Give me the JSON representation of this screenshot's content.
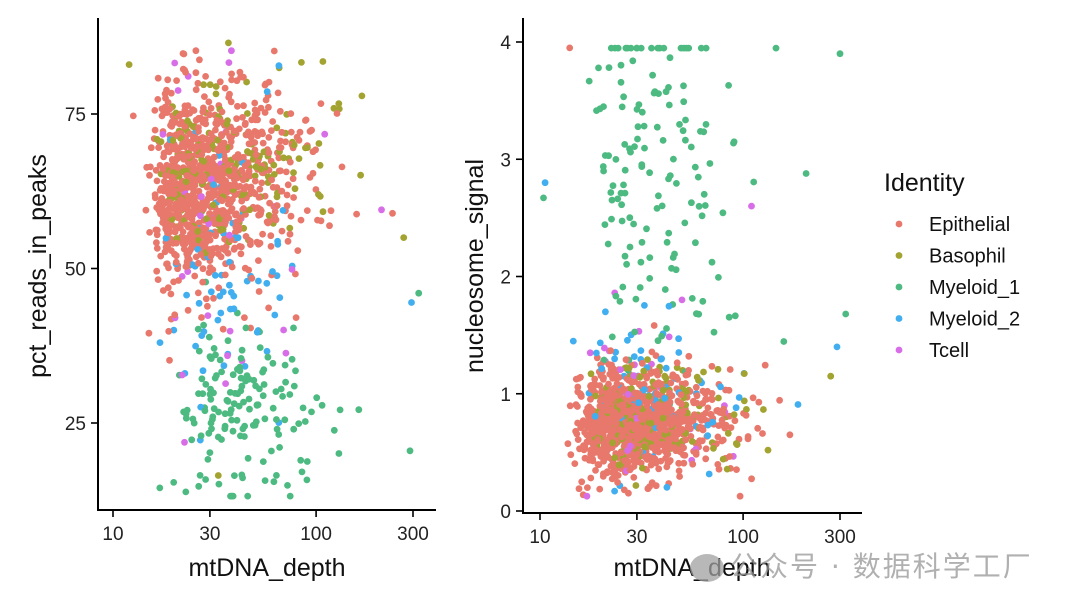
{
  "chart_data": [
    {
      "type": "scatter",
      "panel": "left",
      "xlabel": "mtDNA_depth",
      "ylabel": "pct_reads_in_peaks",
      "xscale": "log10",
      "xlim": [
        8.5,
        380
      ],
      "ylim": [
        10.8,
        90
      ],
      "xticks": [
        10,
        30,
        100,
        300
      ],
      "xtick_labels": [
        "10",
        "30",
        "100",
        "300"
      ],
      "yticks": [
        25,
        50,
        75
      ],
      "ytick_labels": [
        "25",
        "50",
        "75"
      ],
      "grid": false,
      "clusters": [
        {
          "group": "Epithelial",
          "n": 900,
          "x_log_range": [
            1.0,
            2.42
          ],
          "x_log_center": 1.3,
          "x_log_sd": 0.28,
          "y_mean": 63,
          "y_sd": 8
        },
        {
          "group": "Basophil",
          "n": 170,
          "x_log_range": [
            1.0,
            2.3
          ],
          "x_log_center": 1.35,
          "x_log_sd": 0.3,
          "y_mean": 65,
          "y_sd": 7
        },
        {
          "group": "Myeloid_1",
          "n": 150,
          "x_log_range": [
            1.0,
            2.5
          ],
          "x_log_center": 1.45,
          "x_log_sd": 0.3,
          "y_mean": 28,
          "y_sd": 7
        },
        {
          "group": "Myeloid_2",
          "n": 70,
          "x_log_range": [
            1.0,
            2.5
          ],
          "x_log_center": 1.35,
          "x_log_sd": 0.3,
          "y_mean": 50,
          "y_sd": 12
        },
        {
          "group": "Tcell",
          "n": 35,
          "x_log_range": [
            1.0,
            2.3
          ],
          "x_log_center": 1.35,
          "x_log_sd": 0.3,
          "y_mean": 58,
          "y_sd": 12
        }
      ],
      "outliers": [
        {
          "group": "Basophil",
          "x": 37,
          "y": 86.5
        },
        {
          "group": "Basophil",
          "x": 108,
          "y": 83.5
        },
        {
          "group": "Basophil",
          "x": 12,
          "y": 83
        },
        {
          "group": "Myeloid_1",
          "x": 290,
          "y": 20.5
        },
        {
          "group": "Myeloid_1",
          "x": 320,
          "y": 46
        },
        {
          "group": "Myeloid_2",
          "x": 295,
          "y": 44.5
        },
        {
          "group": "Basophil",
          "x": 270,
          "y": 55
        },
        {
          "group": "Tcell",
          "x": 210,
          "y": 59.5
        },
        {
          "group": "Myeloid_1",
          "x": 62,
          "y": 15.5
        },
        {
          "group": "Basophil",
          "x": 33,
          "y": 16.5
        },
        {
          "group": "Myeloid_1",
          "x": 17,
          "y": 14.5
        }
      ]
    },
    {
      "type": "scatter",
      "panel": "right",
      "xlabel": "mtDNA_depth",
      "ylabel": "nucleosome_signal",
      "xscale": "log10",
      "xlim": [
        8.5,
        380
      ],
      "ylim": [
        0,
        4.2
      ],
      "xticks": [
        10,
        30,
        100,
        300
      ],
      "xtick_labels": [
        "10",
        "30",
        "100",
        "300"
      ],
      "yticks": [
        0,
        1,
        2,
        3,
        4
      ],
      "ytick_labels": [
        "0",
        "1",
        "2",
        "3",
        "4"
      ],
      "grid": false,
      "clusters": [
        {
          "group": "Epithelial",
          "n": 900,
          "x_log_range": [
            1.0,
            2.4
          ],
          "x_log_center": 1.3,
          "x_log_sd": 0.28,
          "y_mean": 0.75,
          "y_sd": 0.22
        },
        {
          "group": "Basophil",
          "n": 170,
          "x_log_range": [
            1.0,
            2.35
          ],
          "x_log_center": 1.35,
          "x_log_sd": 0.3,
          "y_mean": 0.8,
          "y_sd": 0.22
        },
        {
          "group": "Myeloid_1",
          "n": 150,
          "x_log_range": [
            1.0,
            2.5
          ],
          "x_log_center": 1.4,
          "x_log_sd": 0.3,
          "y_mean": 2.9,
          "y_sd": 0.8
        },
        {
          "group": "Myeloid_2",
          "n": 70,
          "x_log_range": [
            1.0,
            2.5
          ],
          "x_log_center": 1.35,
          "x_log_sd": 0.3,
          "y_mean": 1.0,
          "y_sd": 0.4
        },
        {
          "group": "Tcell",
          "n": 35,
          "x_log_range": [
            1.0,
            2.3
          ],
          "x_log_center": 1.35,
          "x_log_sd": 0.3,
          "y_mean": 0.9,
          "y_sd": 0.4
        }
      ],
      "outliers": [
        {
          "group": "Epithelial",
          "x": 14,
          "y": 3.95
        },
        {
          "group": "Myeloid_1",
          "x": 300,
          "y": 3.9
        },
        {
          "group": "Myeloid_1",
          "x": 320,
          "y": 1.68
        },
        {
          "group": "Myeloid_2",
          "x": 290,
          "y": 1.4
        },
        {
          "group": "Basophil",
          "x": 270,
          "y": 1.15
        },
        {
          "group": "Tcell",
          "x": 110,
          "y": 2.6
        },
        {
          "group": "Tcell",
          "x": 50,
          "y": 1.8
        },
        {
          "group": "Myeloid_2",
          "x": 10.6,
          "y": 2.8
        },
        {
          "group": "Myeloid_1",
          "x": 10.4,
          "y": 2.67
        },
        {
          "group": "Epithelial",
          "x": 26,
          "y": 0.18
        },
        {
          "group": "Epithelial",
          "x": 34,
          "y": 0.19
        }
      ]
    }
  ],
  "legend": {
    "title": "Identity",
    "placement": "right",
    "entries": [
      {
        "label": "Epithelial",
        "color": "#E8786C"
      },
      {
        "label": "Basophil",
        "color": "#A3A332"
      },
      {
        "label": "Myeloid_1",
        "color": "#4DBA81"
      },
      {
        "label": "Myeloid_2",
        "color": "#41AEEF"
      },
      {
        "label": "Tcell",
        "color": "#D86DE8"
      }
    ]
  },
  "watermark": {
    "text": "公众号 · 数据科学工厂"
  }
}
